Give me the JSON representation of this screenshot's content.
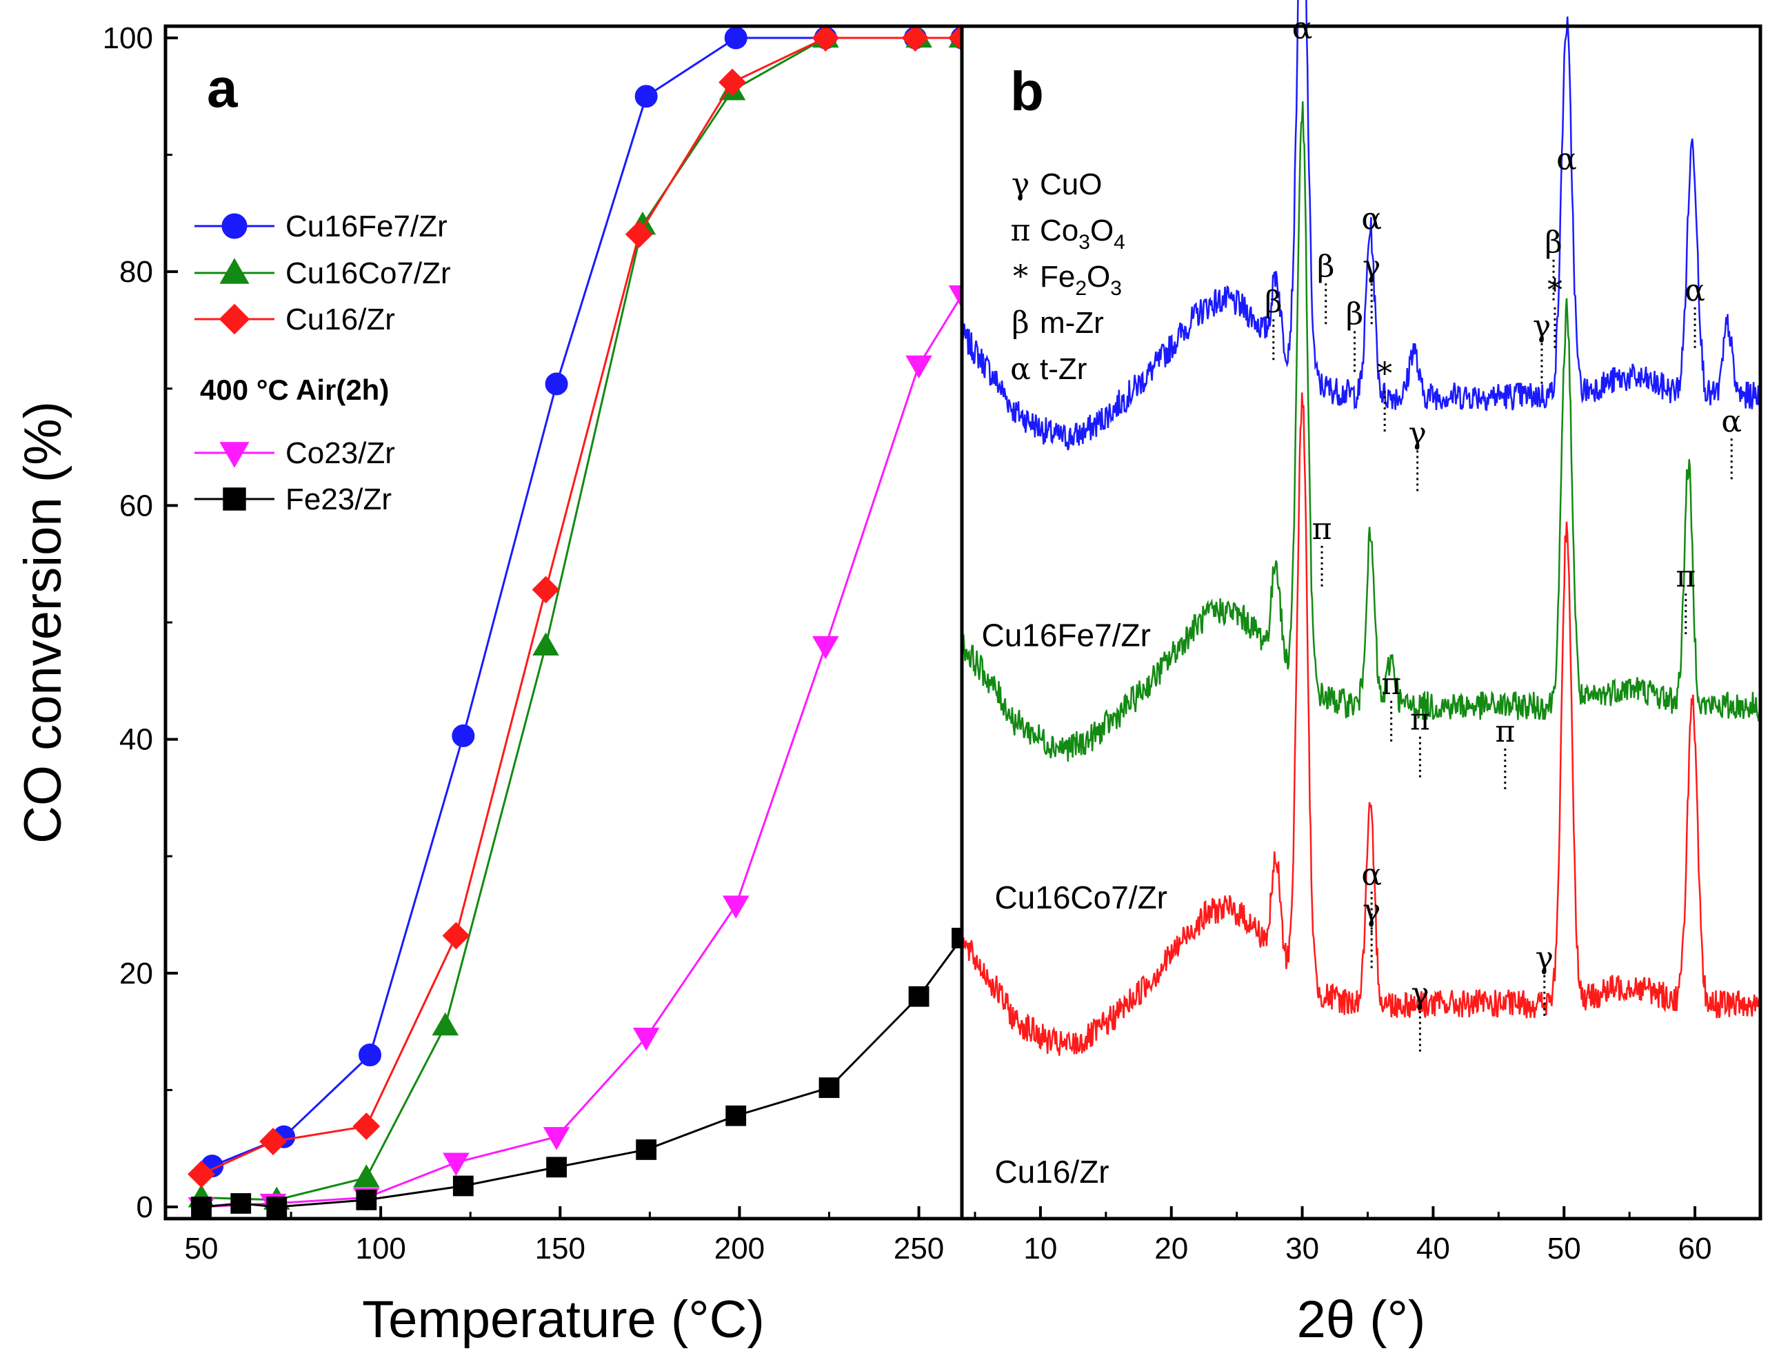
{
  "colors": {
    "blue": "#1a1aff",
    "green": "#138a13",
    "red": "#ff1a1a",
    "magenta": "#ff1aff",
    "black": "#000000"
  },
  "panel_a_label": "a",
  "panel_b_label": "b",
  "chart_data": [
    {
      "type": "line",
      "panel": "a",
      "title": "",
      "xlabel": "Temperature (°C)",
      "ylabel": "CO conversion (%)",
      "xlim": [
        40,
        262
      ],
      "ylim": [
        -1,
        101
      ],
      "xticks": [
        50,
        100,
        150,
        200,
        250
      ],
      "yticks": [
        0,
        20,
        40,
        60,
        80,
        100
      ],
      "legend_note": "400 °C Air(2h)",
      "series": [
        {
          "name": "Cu16Fe7/Zr",
          "color": "blue",
          "marker": "circle",
          "x": [
            53,
            73,
            97,
            123,
            149,
            174,
            199,
            224,
            249,
            262
          ],
          "y": [
            3.5,
            6,
            13,
            40.3,
            70.4,
            95,
            100,
            100,
            100,
            100
          ]
        },
        {
          "name": "Cu16Co7/Zr",
          "color": "green",
          "marker": "triangle-up",
          "x": [
            50,
            71,
            96,
            118,
            146,
            173,
            198,
            224,
            250,
            262
          ],
          "y": [
            0.8,
            0.6,
            2.5,
            15.5,
            48,
            84,
            95.5,
            100,
            100,
            100
          ]
        },
        {
          "name": "Cu16/Zr",
          "color": "red",
          "marker": "diamond",
          "x": [
            50,
            70,
            96,
            121,
            146,
            172,
            198,
            224,
            249,
            262
          ],
          "y": [
            2.8,
            5.6,
            6.9,
            23.2,
            52.8,
            83.2,
            96.2,
            100,
            100,
            100
          ]
        },
        {
          "name": "Co23/Zr",
          "color": "magenta",
          "marker": "triangle-down",
          "x": [
            50,
            70,
            96,
            121,
            149,
            174,
            199,
            224,
            250,
            262
          ],
          "y": [
            0,
            0.3,
            0.8,
            3.8,
            6,
            14.5,
            25.8,
            48,
            72,
            78
          ]
        },
        {
          "name": "Fe23/Zr",
          "color": "black",
          "marker": "square",
          "x": [
            50,
            61,
            71,
            96,
            123,
            149,
            174,
            199,
            225,
            250,
            262
          ],
          "y": [
            0,
            0.3,
            0,
            0.6,
            1.8,
            3.4,
            4.9,
            7.8,
            10.2,
            18,
            23
          ]
        }
      ]
    },
    {
      "type": "line",
      "panel": "b",
      "title": "",
      "xlabel": "2θ (°)",
      "ylabel": "",
      "xlim": [
        4,
        65
      ],
      "ylim": [
        0,
        100
      ],
      "xticks": [
        10,
        20,
        30,
        40,
        50,
        60
      ],
      "phase_legend": [
        {
          "symbol": "γ",
          "label": "CuO"
        },
        {
          "symbol": "π",
          "label": "Co3O4"
        },
        {
          "symbol": "*",
          "label": "Fe2O3"
        },
        {
          "symbol": "β",
          "label": "m-Zr"
        },
        {
          "symbol": "α",
          "label": "t-Zr"
        }
      ],
      "series": [
        {
          "name": "Cu16Fe7/Zr",
          "color": "blue",
          "offset": 63,
          "peaks": [
            [
              28,
              6
            ],
            [
              30,
              43
            ],
            [
              35.2,
              14
            ],
            [
              38.5,
              4
            ],
            [
              50.2,
              31
            ],
            [
              59.8,
              21
            ],
            [
              62.5,
              6
            ]
          ]
        },
        {
          "name": "Cu16Co7/Zr",
          "color": "green",
          "offset": 37,
          "peaks": [
            [
              28,
              8
            ],
            [
              30,
              48
            ],
            [
              35.2,
              14
            ],
            [
              36.8,
              4
            ],
            [
              50.2,
              33
            ],
            [
              59.5,
              20
            ]
          ]
        },
        {
          "name": "Cu16/Zr",
          "color": "red",
          "offset": 12,
          "peaks": [
            [
              28,
              8
            ],
            [
              30,
              49
            ],
            [
              35.2,
              16
            ],
            [
              50.2,
              40
            ],
            [
              59.8,
              25
            ]
          ]
        }
      ],
      "peak_labels": [
        {
          "text": "α",
          "x": 30,
          "y": 99
        },
        {
          "text": "β",
          "x": 27.8,
          "y": 76
        },
        {
          "text": "β",
          "x": 31.8,
          "y": 79
        },
        {
          "text": "α",
          "x": 35.3,
          "y": 83
        },
        {
          "text": "γ",
          "x": 35.3,
          "y": 79
        },
        {
          "text": "β",
          "x": 34,
          "y": 75
        },
        {
          "text": "*",
          "x": 36.3,
          "y": 70
        },
        {
          "text": "γ",
          "x": 38.8,
          "y": 65
        },
        {
          "text": "α",
          "x": 50.2,
          "y": 88
        },
        {
          "text": "β",
          "x": 49.2,
          "y": 81
        },
        {
          "text": "*",
          "x": 49.3,
          "y": 77
        },
        {
          "text": "γ",
          "x": 48.3,
          "y": 74
        },
        {
          "text": "α",
          "x": 60,
          "y": 77
        },
        {
          "text": "α",
          "x": 62.8,
          "y": 66
        },
        {
          "text": "π",
          "x": 31.5,
          "y": 57
        },
        {
          "text": "π",
          "x": 59.3,
          "y": 53
        },
        {
          "text": "π",
          "x": 36.8,
          "y": 44
        },
        {
          "text": "π",
          "x": 39,
          "y": 41
        },
        {
          "text": "π",
          "x": 45.5,
          "y": 40
        },
        {
          "text": "α",
          "x": 35.3,
          "y": 28
        },
        {
          "text": "γ",
          "x": 35.3,
          "y": 25
        },
        {
          "text": "γ",
          "x": 39,
          "y": 18
        },
        {
          "text": "γ",
          "x": 48.5,
          "y": 21
        }
      ],
      "sample_labels": [
        {
          "text": "Cu16Fe7/Zr",
          "x": 5.5,
          "y": 48
        },
        {
          "text": "Cu16Co7/Zr",
          "x": 6.5,
          "y": 26
        },
        {
          "text": "Cu16/Zr",
          "x": 6.5,
          "y": 3
        }
      ]
    }
  ]
}
